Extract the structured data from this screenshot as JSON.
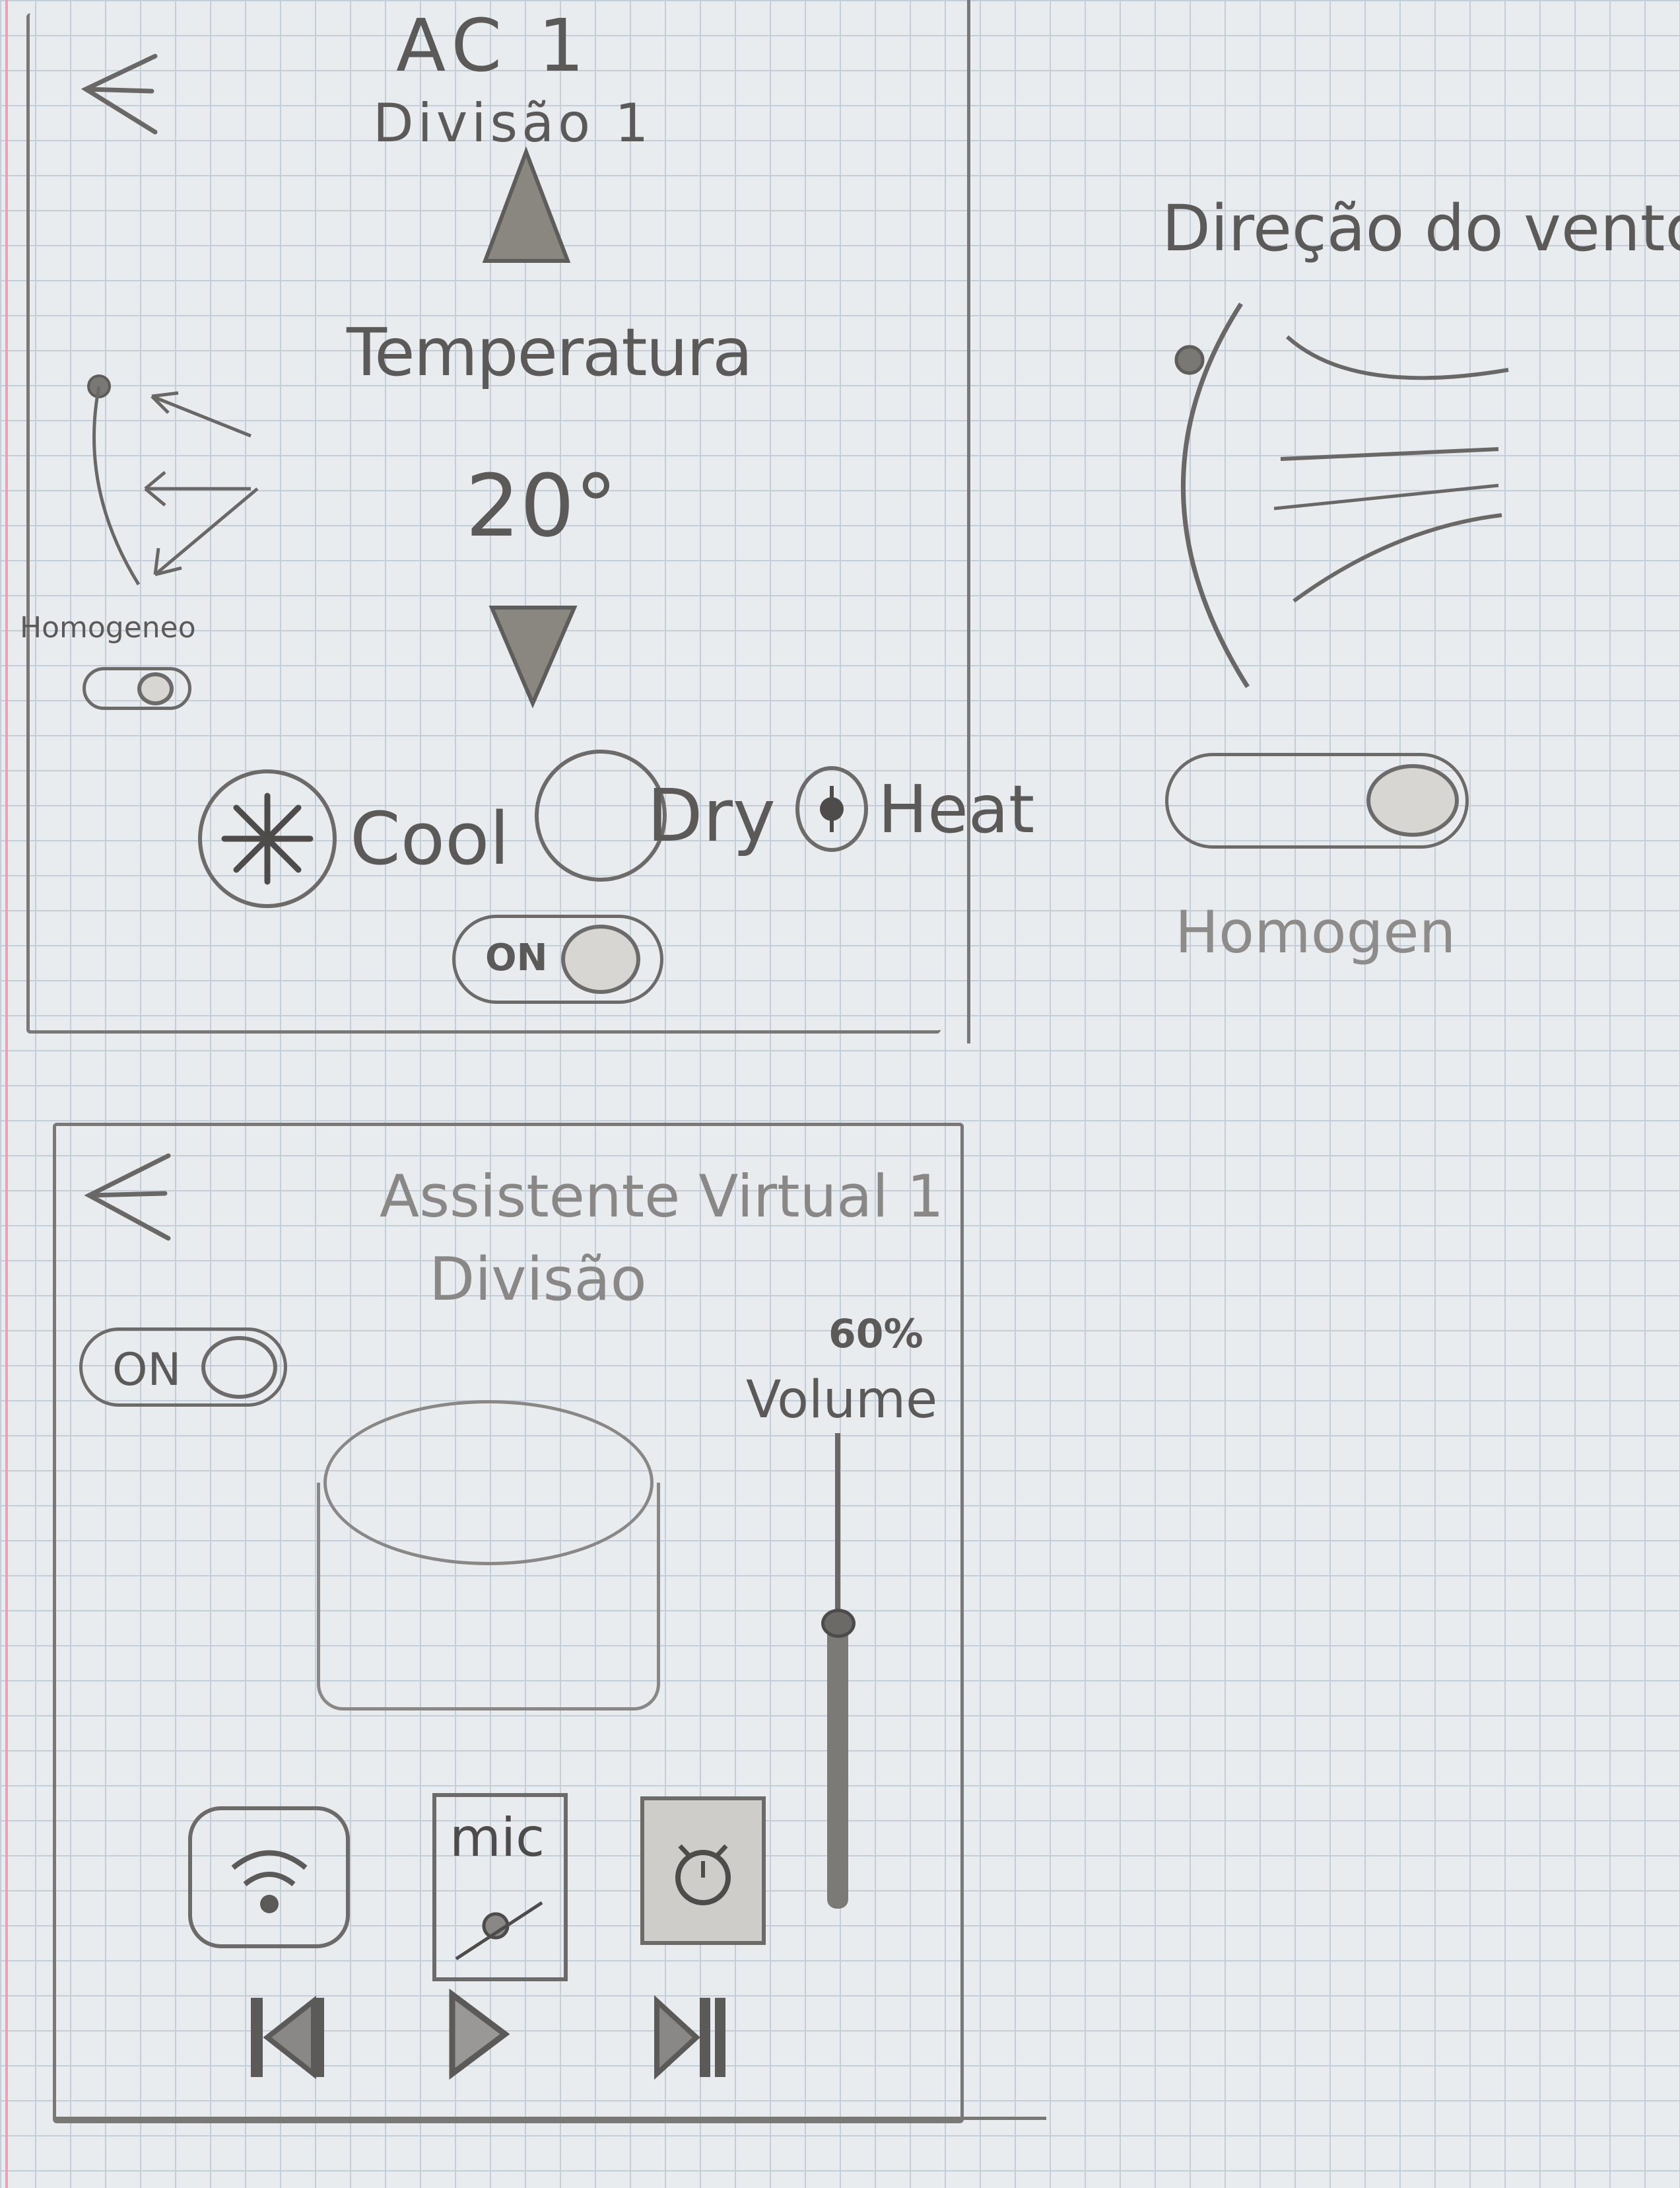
{
  "ac_screen": {
    "title": "AC 1",
    "subtitle": "Divisão 1",
    "temperature_label": "Temperatura",
    "temperature_value": "20°",
    "homogeneous_label": "Homogeneo",
    "modes": [
      {
        "label": "Cool",
        "icon": "snowflake-icon"
      },
      {
        "label": "Dry",
        "icon": "circle-icon"
      },
      {
        "label": "Heat",
        "icon": "sun-icon"
      }
    ],
    "power_label": "ON"
  },
  "wind_panel": {
    "title": "Direção do vento",
    "homogeneous_label": "Homogen"
  },
  "assistant_screen": {
    "title": "Assistente Virtual 1",
    "subtitle": "Divisão",
    "power_label": "ON",
    "volume_percent_label": "60%",
    "volume_label": "Volume",
    "volume_level": 0.6,
    "function_buttons": [
      {
        "icon": "wifi-icon"
      },
      {
        "label": "mic",
        "icon": "microphone-icon"
      },
      {
        "icon": "alarm-clock-icon"
      }
    ],
    "media_controls": [
      "previous-icon",
      "play-icon",
      "next-icon"
    ]
  }
}
